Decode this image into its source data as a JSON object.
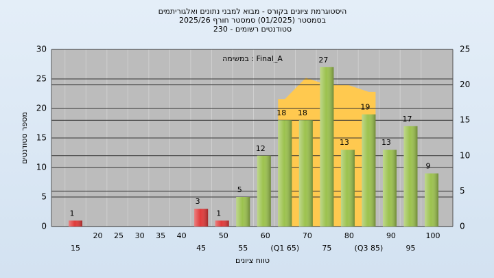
{
  "chart_data": {
    "type": "bar",
    "title_lines": [
      "היסטוגרמת ציונים בקורס - מבוא למבני נתונים ואלגוריתמים",
      "בסמסטר  (01/2025)  סמסטר חורף 2025/26",
      "230 - סטודנטים רשומים"
    ],
    "annotation": "במשימה : Final_A",
    "ylabel": "מספר סטודנטים",
    "xlabel": "טווח ציונים",
    "categories": [
      "15",
      "20",
      "25",
      "30",
      "35",
      "40",
      "45",
      "50",
      "55",
      "60",
      "(Q1 65)",
      "70",
      "75",
      "80",
      "(Q3 85)",
      "90",
      "95",
      "100"
    ],
    "values": [
      1,
      0,
      0,
      0,
      0,
      0,
      3,
      1,
      5,
      12,
      18,
      18,
      27,
      13,
      19,
      13,
      17,
      9
    ],
    "colors": [
      "#e03a3a",
      "#e03a3a",
      "#e03a3a",
      "#e03a3a",
      "#e03a3a",
      "#e03a3a",
      "#e03a3a",
      "#e03a3a",
      "#9cc24e",
      "#9cc24e",
      "#9cc24e",
      "#9cc24e",
      "#9cc24e",
      "#9cc24e",
      "#9cc24e",
      "#9cc24e",
      "#9cc24e",
      "#9cc24e"
    ],
    "area": {
      "axis": "y2",
      "color": "#ffc94f",
      "values": [
        null,
        null,
        null,
        null,
        null,
        null,
        null,
        null,
        null,
        null,
        18,
        21,
        20,
        20,
        19,
        null,
        null,
        null
      ]
    },
    "ylim": [
      0,
      30
    ],
    "yticks": [
      0,
      5,
      10,
      15,
      20,
      25,
      30
    ],
    "y2lim": [
      0,
      25
    ],
    "y2ticks": [
      0,
      5,
      10,
      15,
      20,
      25
    ],
    "grid": true
  }
}
